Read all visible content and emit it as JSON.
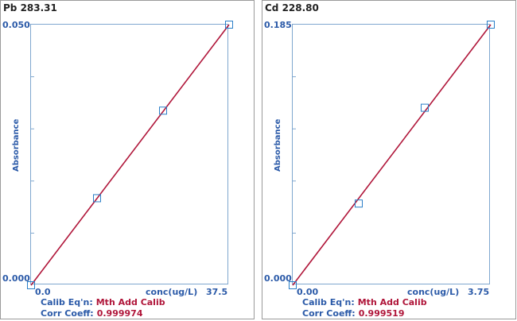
{
  "panels": [
    {
      "title": "Pb 283.31",
      "ylabel": "Absorbance",
      "y_top": "0.050",
      "y_bottom": "0.000",
      "x_left": "0.0",
      "x_right": "37.5",
      "xlabel": "conc(ug/L)",
      "calib_label": "Calib Eq'n:",
      "calib_value": "Mth Add Calib",
      "corr_label": "Corr Coeff:",
      "corr_value": "0.999974"
    },
    {
      "title": "Cd 228.80",
      "ylabel": "Absorbance",
      "y_top": "0.185",
      "y_bottom": "0.000",
      "x_left": "0.00",
      "x_right": "3.75",
      "xlabel": "conc(ug/L)",
      "calib_label": "Calib Eq'n:",
      "calib_value": "Mth Add Calib",
      "corr_label": "Corr Coeff:",
      "corr_value": "0.999519"
    }
  ],
  "colors": {
    "line": "#b0163a",
    "marker": "#2b7fc8",
    "axis_text": "#2b5aa8"
  },
  "chart_data": [
    {
      "type": "scatter",
      "title": "Pb 283.31",
      "ylabel": "Absorbance",
      "xlabel": "conc(ug/L)",
      "xlim": [
        0,
        37.5
      ],
      "ylim": [
        0,
        0.05
      ],
      "points": [
        [
          0,
          0.0
        ],
        [
          12.5,
          0.0167
        ],
        [
          25,
          0.0335
        ],
        [
          37.5,
          0.05
        ]
      ],
      "fit_line": [
        [
          0,
          0
        ],
        [
          37.5,
          0.05
        ]
      ]
    },
    {
      "type": "scatter",
      "title": "Cd 228.80",
      "ylabel": "Absorbance",
      "xlabel": "conc(ug/L)",
      "xlim": [
        0,
        3.75
      ],
      "ylim": [
        0,
        0.185
      ],
      "points": [
        [
          0,
          0.0
        ],
        [
          1.25,
          0.058
        ],
        [
          2.5,
          0.126
        ],
        [
          3.75,
          0.185
        ]
      ],
      "fit_line": [
        [
          0,
          0
        ],
        [
          3.75,
          0.185
        ]
      ]
    }
  ]
}
